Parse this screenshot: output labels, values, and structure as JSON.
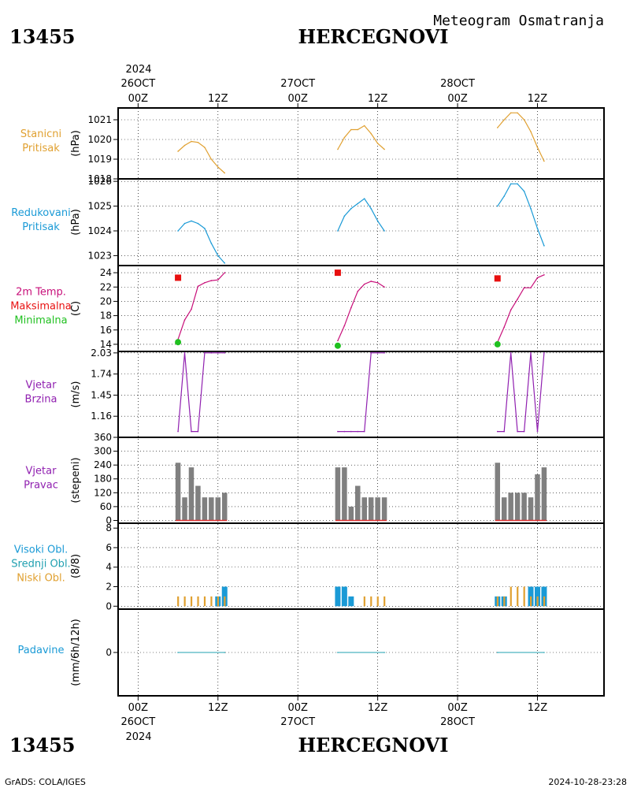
{
  "header": {
    "product_title": "Meteogram Osmatranja",
    "station_id": "13455",
    "station_name": "HERCEGNOVI"
  },
  "footer": {
    "credit": "GrADS: COLA/IGES",
    "timestamp": "2024-10-28-23:28"
  },
  "time_axis": {
    "top_year": "2024",
    "bottom_year": "2024",
    "ticks": [
      {
        "hour": 0,
        "label": "00Z",
        "date": "26OCT"
      },
      {
        "hour": 12,
        "label": "12Z",
        "date": ""
      },
      {
        "hour": 24,
        "label": "00Z",
        "date": "27OCT"
      },
      {
        "hour": 36,
        "label": "12Z",
        "date": ""
      },
      {
        "hour": 48,
        "label": "00Z",
        "date": "28OCT"
      },
      {
        "hour": 60,
        "label": "12Z",
        "date": ""
      }
    ],
    "xlim_hours": [
      -3,
      70
    ]
  },
  "colors": {
    "pressure": "#e0a030",
    "reduced": "#1a9ad6",
    "temp": "#c8107a",
    "tmax": "#e81010",
    "tmin": "#20c020",
    "wind": "#9020b0",
    "wind_dir_bar": "#808080",
    "wind_dir_base": "#e03030",
    "cloud_high": "#1a9ad6",
    "cloud_low": "#e0a030",
    "precip": "#20a0b0"
  },
  "chart_data": [
    {
      "type": "line",
      "labels": [
        "Stanicni",
        "Pritisak"
      ],
      "ylabel": "(hPa)",
      "ylim": [
        1018,
        1021.6
      ],
      "yticks": [
        1018,
        1019,
        1020,
        1021
      ],
      "series": [
        {
          "x": [
            6,
            7,
            8,
            9,
            10,
            11,
            12,
            13
          ],
          "y": [
            1019.4,
            1019.7,
            1019.9,
            1019.85,
            1019.6,
            1019.0,
            1018.6,
            1018.3
          ]
        },
        {
          "x": [
            30,
            31,
            32,
            33,
            34,
            35,
            36,
            37
          ],
          "y": [
            1019.5,
            1020.1,
            1020.5,
            1020.5,
            1020.7,
            1020.3,
            1019.8,
            1019.5
          ]
        },
        {
          "x": [
            54,
            55,
            56,
            57,
            58,
            59,
            60,
            61
          ],
          "y": [
            1020.6,
            1021.0,
            1021.35,
            1021.35,
            1021.0,
            1020.4,
            1019.6,
            1018.9
          ]
        }
      ]
    },
    {
      "type": "line",
      "labels": [
        "Redukovani",
        "Pritisak"
      ],
      "ylabel": "(hPa)",
      "ylim": [
        1022.6,
        1026.1
      ],
      "yticks": [
        1023,
        1024,
        1025,
        1026
      ],
      "series": [
        {
          "x": [
            6,
            7,
            8,
            9,
            10,
            11,
            12,
            13
          ],
          "y": [
            1024.0,
            1024.3,
            1024.4,
            1024.3,
            1024.1,
            1023.5,
            1023.0,
            1022.7
          ]
        },
        {
          "x": [
            30,
            31,
            32,
            33,
            34,
            35,
            36,
            37
          ],
          "y": [
            1024.0,
            1024.6,
            1024.9,
            1025.1,
            1025.3,
            1024.9,
            1024.4,
            1024.0
          ]
        },
        {
          "x": [
            54,
            55,
            56,
            57,
            58,
            59,
            60,
            61
          ],
          "y": [
            1025.0,
            1025.4,
            1025.9,
            1025.9,
            1025.6,
            1024.9,
            1024.1,
            1023.4
          ]
        }
      ]
    },
    {
      "type": "line",
      "labels": [
        "2m Temp.",
        "Maksimalna",
        "Minimalna"
      ],
      "ylabel": "(C)",
      "ylim": [
        13,
        25
      ],
      "yticks": [
        14,
        16,
        18,
        20,
        22,
        24
      ],
      "series": [
        {
          "name": "2m Temp.",
          "x": [
            6,
            7,
            8,
            9,
            10,
            11,
            12,
            13
          ],
          "y": [
            14.7,
            17.4,
            18.9,
            22.1,
            22.6,
            22.9,
            23.0,
            24.0
          ]
        },
        {
          "name": "2m Temp.",
          "x": [
            30,
            31,
            32,
            33,
            34,
            35,
            36,
            37
          ],
          "y": [
            14.5,
            16.6,
            19.1,
            21.4,
            22.4,
            22.8,
            22.6,
            22.0
          ]
        },
        {
          "name": "2m Temp.",
          "x": [
            54,
            55,
            56,
            57,
            58,
            59,
            60,
            61
          ],
          "y": [
            14.3,
            16.4,
            18.8,
            20.3,
            21.9,
            21.9,
            23.3,
            23.7
          ]
        }
      ],
      "max_points": {
        "x": [
          6,
          30,
          54
        ],
        "y": [
          23.3,
          24.0,
          23.2
        ]
      },
      "min_points": {
        "x": [
          6,
          30,
          54
        ],
        "y": [
          14.3,
          13.8,
          14.0
        ]
      }
    },
    {
      "type": "line",
      "labels": [
        "Vjetar",
        "Brzina"
      ],
      "ylabel": "(m/s)",
      "ylim": [
        0.87,
        2.05
      ],
      "yticks": [
        1.16,
        1.45,
        1.74,
        2.03
      ],
      "series": [
        {
          "x": [
            6,
            7,
            8,
            9,
            10,
            11,
            12,
            13
          ],
          "y": [
            0.95,
            2.03,
            0.95,
            0.95,
            2.03,
            2.03,
            2.03,
            2.03
          ]
        },
        {
          "x": [
            30,
            31,
            32,
            33,
            34,
            35,
            36,
            37
          ],
          "y": [
            0.95,
            0.95,
            0.95,
            0.95,
            0.95,
            2.03,
            2.03,
            2.03
          ]
        },
        {
          "x": [
            54,
            55,
            56,
            57,
            58,
            59,
            60,
            61
          ],
          "y": [
            0.95,
            0.95,
            2.03,
            0.95,
            0.95,
            2.03,
            0.95,
            2.03
          ]
        }
      ]
    },
    {
      "type": "bar",
      "labels": [
        "Vjetar",
        "Pravac"
      ],
      "ylabel": "(stepeni)",
      "ylim": [
        -12,
        360
      ],
      "yticks": [
        0,
        60,
        120,
        180,
        240,
        300,
        360
      ],
      "x": [
        6,
        7,
        8,
        9,
        10,
        11,
        12,
        13,
        30,
        31,
        32,
        33,
        34,
        35,
        36,
        37,
        54,
        55,
        56,
        57,
        58,
        59,
        60,
        61
      ],
      "values": [
        250,
        100,
        230,
        150,
        100,
        100,
        100,
        120,
        230,
        230,
        60,
        150,
        100,
        100,
        100,
        100,
        250,
        100,
        120,
        120,
        120,
        100,
        200,
        230
      ]
    },
    {
      "type": "bar",
      "labels": [
        "Visoki Obl.",
        "Srednji Obl.",
        "Niski Obl."
      ],
      "ylabel": "(8/8)",
      "ylim": [
        -0.3,
        8.5
      ],
      "yticks": [
        0,
        2,
        4,
        6,
        8
      ],
      "x": [
        6,
        7,
        8,
        9,
        10,
        11,
        12,
        13,
        30,
        31,
        32,
        33,
        34,
        35,
        36,
        37,
        54,
        55,
        56,
        57,
        58,
        59,
        60,
        61
      ],
      "series": [
        {
          "name": "Visoki Obl.",
          "values": [
            0,
            0,
            0,
            0,
            0,
            0,
            1,
            2,
            2,
            2,
            1,
            0,
            0,
            0,
            0,
            0,
            1,
            1,
            0,
            0,
            0,
            2,
            2,
            2
          ]
        },
        {
          "name": "Niski Obl.",
          "values": [
            1,
            1,
            1,
            1,
            1,
            1,
            1,
            1,
            0,
            0,
            0,
            0,
            1,
            1,
            1,
            1,
            1,
            1,
            2,
            2,
            2,
            1,
            1,
            1
          ]
        }
      ]
    },
    {
      "type": "line",
      "labels": [
        "Padavine"
      ],
      "ylabel": "(mm/6h/12h)",
      "ylim": [
        -1.6,
        1.6
      ],
      "yticks": [
        0
      ],
      "series": [
        {
          "x": [
            6,
            13
          ],
          "y": [
            0,
            0
          ]
        },
        {
          "x": [
            30,
            37
          ],
          "y": [
            0,
            0
          ]
        },
        {
          "x": [
            54,
            61
          ],
          "y": [
            0,
            0
          ]
        }
      ]
    }
  ]
}
